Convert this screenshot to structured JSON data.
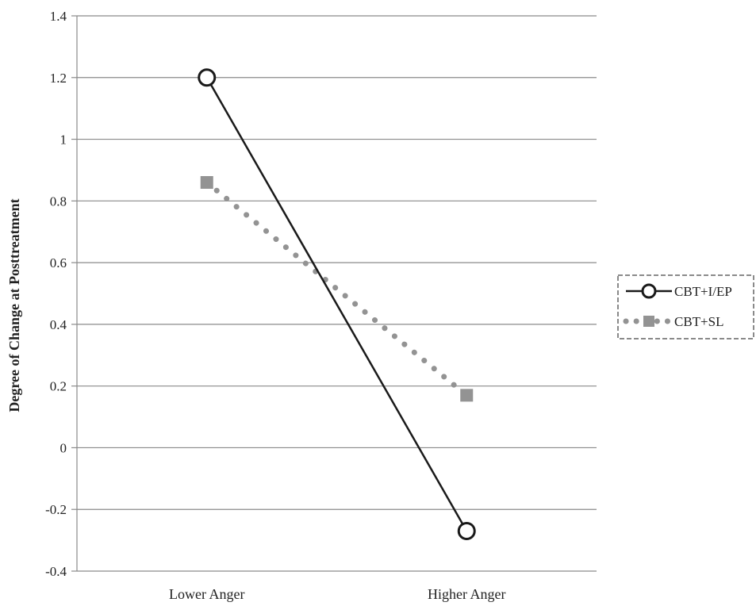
{
  "chart_data": {
    "type": "line",
    "title": "",
    "xlabel": "",
    "ylabel": "Degree of Change at Posttreatment",
    "categories": [
      "Lower Anger",
      "Higher Anger"
    ],
    "ylim": [
      -0.4,
      1.4
    ],
    "yticks": [
      -0.4,
      -0.2,
      0,
      0.2,
      0.4,
      0.6,
      0.8,
      1,
      1.2,
      1.4
    ],
    "ytick_labels": [
      "-0.4",
      "-0.2",
      "0",
      "0.2",
      "0.4",
      "0.6",
      "0.8",
      "1",
      "1.2",
      "1.4"
    ],
    "grid": "horizontal",
    "legend_position": "right",
    "series": [
      {
        "name": "CBT+I/EP",
        "values": [
          1.2,
          -0.27
        ],
        "color": "#1a1a1a",
        "line_style": "solid",
        "marker": "open-circle"
      },
      {
        "name": "CBT+SL",
        "values": [
          0.86,
          0.17
        ],
        "color": "#939393",
        "line_style": "dotted",
        "marker": "square"
      }
    ]
  }
}
